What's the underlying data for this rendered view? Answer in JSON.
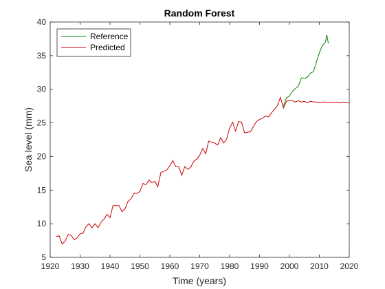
{
  "chart_data": {
    "type": "line",
    "title": "Random Forest",
    "xlabel": "Time (years)",
    "ylabel": "Sea level (mm)",
    "xlim": [
      1920,
      2020
    ],
    "ylim": [
      5,
      40
    ],
    "xticks": [
      "1920",
      "1930",
      "1940",
      "1950",
      "1960",
      "1970",
      "1980",
      "1990",
      "2000",
      "2010",
      "2020"
    ],
    "yticks": [
      "5",
      "10",
      "15",
      "20",
      "25",
      "30",
      "35",
      "40"
    ],
    "legend_position": "top-left",
    "grid": false,
    "series": [
      {
        "name": "Reference",
        "color": "#008000",
        "points": [
          [
            1998,
            27.5
          ],
          [
            1999,
            28.7
          ],
          [
            2000,
            29.0
          ],
          [
            2001,
            29.7
          ],
          [
            2002,
            30.1
          ],
          [
            2003,
            30.5
          ],
          [
            2004,
            31.7
          ],
          [
            2005,
            31.6
          ],
          [
            2006,
            31.8
          ],
          [
            2007,
            32.4
          ],
          [
            2008,
            32.6
          ],
          [
            2009,
            34.0
          ],
          [
            2010,
            35.4
          ],
          [
            2011,
            36.5
          ],
          [
            2012,
            37.0
          ],
          [
            2012.5,
            38.1
          ],
          [
            2013,
            36.8
          ]
        ]
      },
      {
        "name": "Predicted",
        "color": "#cc0000",
        "points": [
          [
            1922,
            8.1
          ],
          [
            1923,
            8.2
          ],
          [
            1924,
            7.0
          ],
          [
            1925,
            7.4
          ],
          [
            1926,
            8.4
          ],
          [
            1927,
            8.3
          ],
          [
            1928,
            7.6
          ],
          [
            1929,
            7.9
          ],
          [
            1930,
            8.5
          ],
          [
            1931,
            8.6
          ],
          [
            1932,
            9.6
          ],
          [
            1933,
            10.0
          ],
          [
            1934,
            9.4
          ],
          [
            1935,
            10.0
          ],
          [
            1936,
            9.4
          ],
          [
            1937,
            10.2
          ],
          [
            1938,
            10.7
          ],
          [
            1939,
            11.4
          ],
          [
            1940,
            10.9
          ],
          [
            1941,
            12.7
          ],
          [
            1942,
            12.7
          ],
          [
            1943,
            12.7
          ],
          [
            1944,
            11.8
          ],
          [
            1945,
            12.2
          ],
          [
            1946,
            13.3
          ],
          [
            1947,
            13.7
          ],
          [
            1948,
            14.5
          ],
          [
            1949,
            14.5
          ],
          [
            1950,
            14.8
          ],
          [
            1951,
            16.0
          ],
          [
            1952,
            15.8
          ],
          [
            1953,
            16.5
          ],
          [
            1954,
            16.1
          ],
          [
            1955,
            16.3
          ],
          [
            1956,
            15.5
          ],
          [
            1957,
            17.6
          ],
          [
            1958,
            17.8
          ],
          [
            1959,
            18.0
          ],
          [
            1960,
            18.6
          ],
          [
            1961,
            19.4
          ],
          [
            1962,
            18.5
          ],
          [
            1963,
            18.5
          ],
          [
            1964,
            17.2
          ],
          [
            1965,
            18.5
          ],
          [
            1966,
            18.1
          ],
          [
            1967,
            18.4
          ],
          [
            1968,
            19.3
          ],
          [
            1969,
            19.6
          ],
          [
            1970,
            20.2
          ],
          [
            1971,
            21.2
          ],
          [
            1972,
            20.4
          ],
          [
            1973,
            22.3
          ],
          [
            1974,
            22.1
          ],
          [
            1975,
            22.0
          ],
          [
            1976,
            21.7
          ],
          [
            1977,
            22.8
          ],
          [
            1978,
            22.0
          ],
          [
            1979,
            22.6
          ],
          [
            1980,
            24.2
          ],
          [
            1981,
            25.1
          ],
          [
            1982,
            23.8
          ],
          [
            1983,
            25.2
          ],
          [
            1984,
            25.1
          ],
          [
            1985,
            23.5
          ],
          [
            1986,
            23.6
          ],
          [
            1987,
            23.7
          ],
          [
            1988,
            24.5
          ],
          [
            1989,
            25.2
          ],
          [
            1990,
            25.5
          ],
          [
            1991,
            25.7
          ],
          [
            1992,
            26.0
          ],
          [
            1993,
            25.9
          ],
          [
            1994,
            26.5
          ],
          [
            1995,
            27.0
          ],
          [
            1996,
            27.6
          ],
          [
            1997,
            28.8
          ],
          [
            1998,
            27.2
          ],
          [
            1999,
            28.2
          ],
          [
            2000,
            28.4
          ],
          [
            2001,
            28.3
          ],
          [
            2002,
            28.1
          ],
          [
            2003,
            28.3
          ],
          [
            2004,
            28.1
          ],
          [
            2005,
            28.2
          ],
          [
            2006,
            28.0
          ],
          [
            2007,
            28.2
          ],
          [
            2008,
            28.1
          ],
          [
            2009,
            28.1
          ],
          [
            2010,
            28.0
          ],
          [
            2011,
            28.1
          ],
          [
            2012,
            28.1
          ],
          [
            2013,
            28.0
          ],
          [
            2014,
            28.1
          ],
          [
            2015,
            28.0
          ],
          [
            2016,
            28.1
          ],
          [
            2017,
            28.0
          ],
          [
            2018,
            28.1
          ],
          [
            2019,
            28.0
          ],
          [
            2020,
            28.1
          ]
        ]
      }
    ]
  }
}
